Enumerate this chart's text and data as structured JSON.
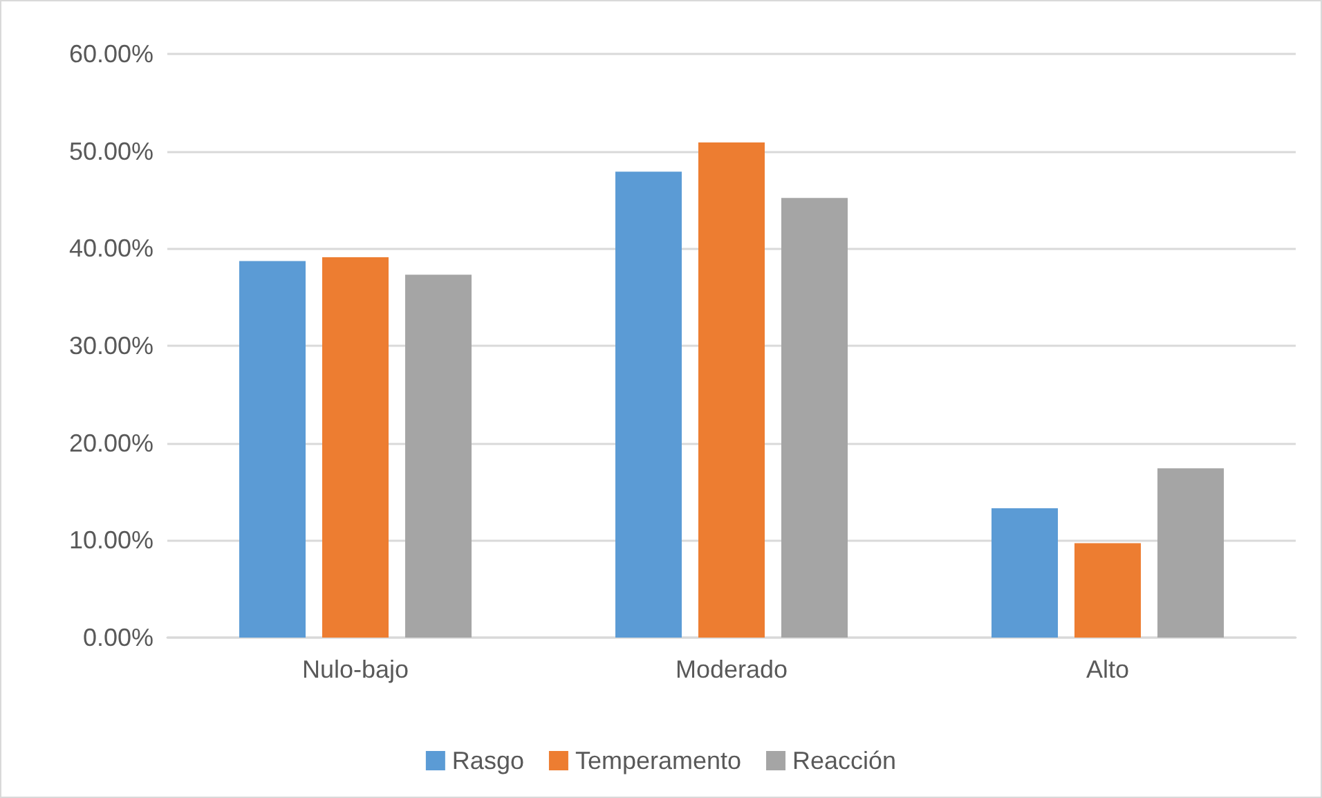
{
  "chart_data": {
    "type": "bar",
    "categories": [
      "Nulo-bajo",
      "Moderado",
      "Alto"
    ],
    "series": [
      {
        "name": "Rasgo",
        "color": "#5b9bd5",
        "values": [
          38.7,
          47.9,
          13.3
        ]
      },
      {
        "name": "Temperamento",
        "color": "#ed7d31",
        "values": [
          39.1,
          50.9,
          9.7
        ]
      },
      {
        "name": "Reacción",
        "color": "#a5a5a5",
        "values": [
          37.3,
          45.2,
          17.4
        ]
      }
    ],
    "ylim": [
      0,
      60
    ],
    "yticks": [
      {
        "value": 0,
        "label": "0.00%"
      },
      {
        "value": 10,
        "label": "10.00%"
      },
      {
        "value": 20,
        "label": "20.00%"
      },
      {
        "value": 30,
        "label": "30.00%"
      },
      {
        "value": 40,
        "label": "40.00%"
      },
      {
        "value": 50,
        "label": "50.00%"
      },
      {
        "value": 60,
        "label": "60.00%"
      }
    ],
    "grid": "y",
    "legend": "bottom"
  }
}
